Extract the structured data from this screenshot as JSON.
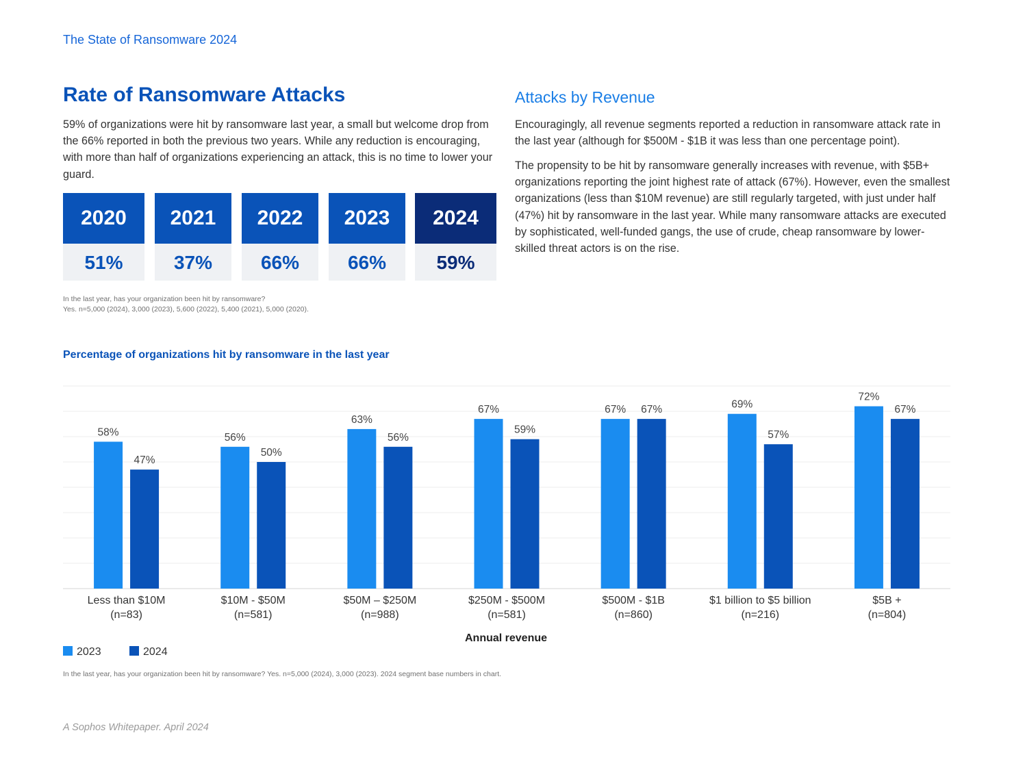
{
  "header": {
    "running_title": "The State of Ransomware 2024"
  },
  "left": {
    "title": "Rate of Ransomware Attacks",
    "intro": "59% of organizations were hit by ransomware last year, a small but welcome drop from the 66% reported in both the previous two years. While any reduction is encouraging, with more than half of organizations experiencing an attack, this is no time to lower your guard.",
    "years": [
      {
        "year": "2020",
        "value": "51%"
      },
      {
        "year": "2021",
        "value": "37%"
      },
      {
        "year": "2022",
        "value": "66%"
      },
      {
        "year": "2023",
        "value": "66%"
      },
      {
        "year": "2024",
        "value": "59%"
      }
    ],
    "note_line1": "In the last year, has your organization been hit by ransomware?",
    "note_line2": "Yes. n=5,000 (2024), 3,000 (2023), 5,600 (2022), 5,400 (2021), 5,000 (2020)."
  },
  "right": {
    "title": "Attacks by Revenue",
    "p1": "Encouragingly, all revenue segments reported a reduction in ransomware attack rate in the last year (although for $500M - $1B it was less than one percentage point).",
    "p2": "The propensity to be hit by ransomware generally increases with revenue, with $5B+ organizations reporting the joint highest rate of attack (67%).  However, even the smallest organizations (less than $10M revenue) are still regularly targeted, with just under half (47%) hit by ransomware in the last year. While many ransomware attacks are executed by sophisticated, well-funded gangs, the use of crude, cheap ransomware by lower-skilled threat actors is on the rise."
  },
  "chart_data": {
    "type": "bar",
    "title": "Percentage of organizations hit by ransomware in the last year",
    "xlabel": "Annual revenue",
    "ylabel": "",
    "ylim": [
      0,
      80
    ],
    "grid": true,
    "legend_position": "bottom-left",
    "categories": [
      [
        "Less than $10M",
        "(n=83)"
      ],
      [
        "$10M - $50M",
        "(n=581)"
      ],
      [
        "$50M – $250M",
        "(n=988)"
      ],
      [
        "$250M - $500M",
        "(n=581)"
      ],
      [
        "$500M - $1B",
        "(n=860)"
      ],
      [
        "$1 billion to $5 billion",
        "(n=216)"
      ],
      [
        "$5B +",
        "(n=804)"
      ]
    ],
    "series": [
      {
        "name": "2023",
        "color": "#1a8cf0",
        "values": [
          58,
          56,
          63,
          67,
          67,
          69,
          72
        ]
      },
      {
        "name": "2024",
        "color": "#0a53b8",
        "values": [
          47,
          50,
          56,
          59,
          67,
          57,
          67
        ]
      }
    ]
  },
  "chart_note": "In the last year, has your organization been hit by ransomware? Yes. n=5,000 (2024), 3,000 (2023). 2024 segment base numbers in chart.",
  "footer": {
    "text": "A Sophos Whitepaper. April 2024"
  }
}
